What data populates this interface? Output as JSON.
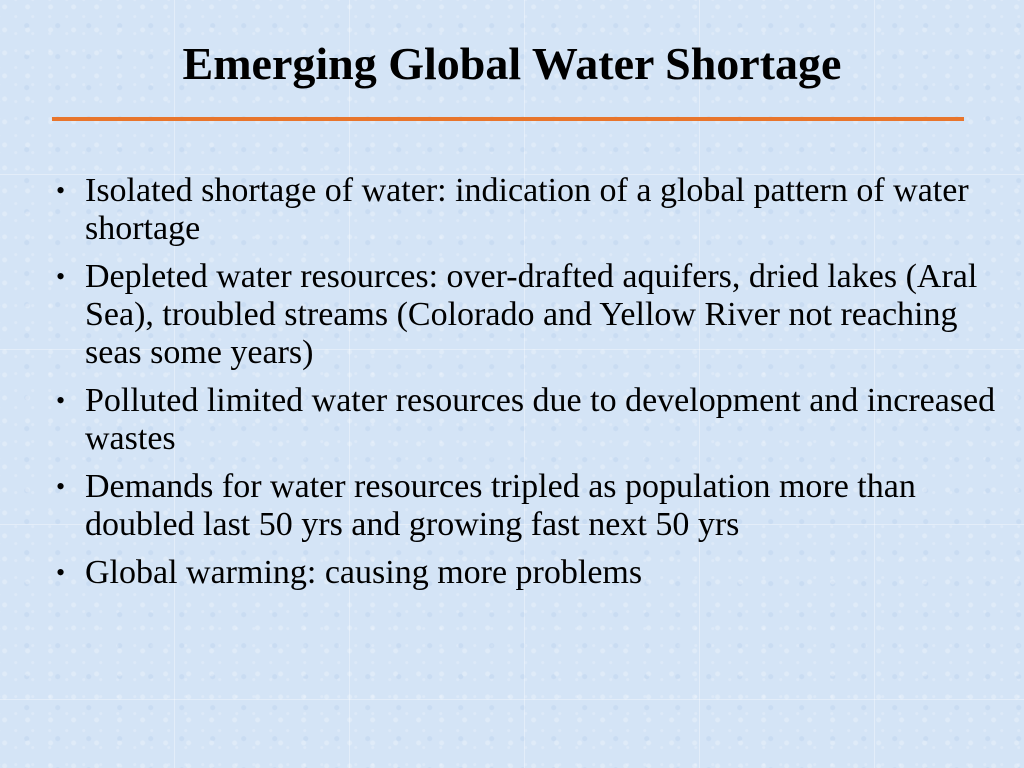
{
  "slide": {
    "title": "Emerging Global Water Shortage",
    "accent_color": "#e8752c",
    "background_color": "#d4e4f6",
    "bullets": [
      "Isolated shortage of water: indication of a global pattern of water shortage",
      "Depleted water resources: over-drafted aquifers, dried lakes (Aral Sea), troubled streams (Colorado and Yellow River not reaching seas some years)",
      "Polluted limited water resources due to development and increased wastes",
      "Demands for water resources tripled as population more than doubled last 50 yrs and growing fast next 50 yrs",
      "Global warming: causing more problems"
    ]
  }
}
